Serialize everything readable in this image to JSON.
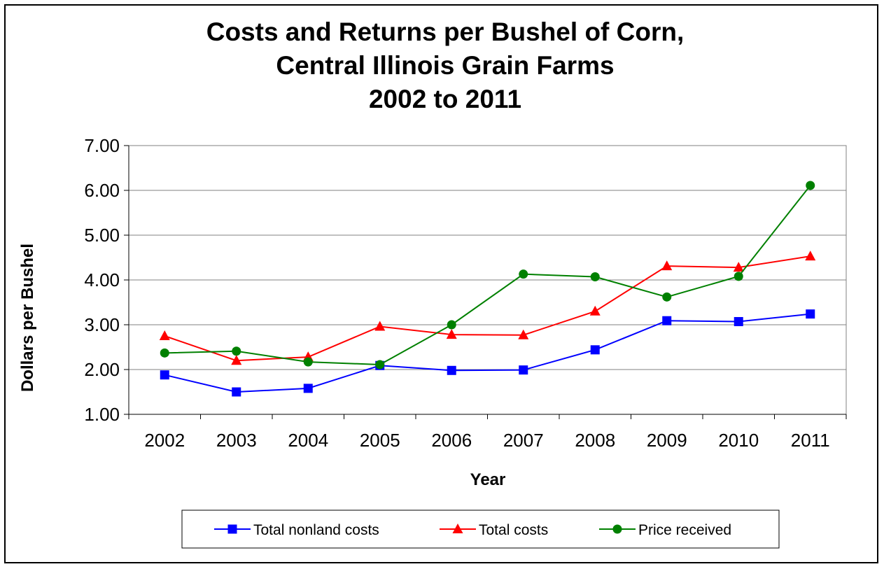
{
  "chart_data": {
    "type": "line",
    "title": [
      "Costs and Returns per Bushel of Corn,",
      "Central Illinois Grain Farms",
      "2002 to 2011"
    ],
    "xlabel": "Year",
    "ylabel": "Dollars per Bushel",
    "categories": [
      "2002",
      "2003",
      "2004",
      "2005",
      "2006",
      "2007",
      "2008",
      "2009",
      "2010",
      "2011"
    ],
    "ylim": [
      1.0,
      7.0
    ],
    "yticks": [
      "1.00",
      "2.00",
      "3.00",
      "4.00",
      "5.00",
      "6.00",
      "7.00"
    ],
    "grid": true,
    "legend_position": "bottom",
    "series": [
      {
        "name": "Total nonland costs",
        "color": "#0000ff",
        "marker": "square",
        "values": [
          1.88,
          1.5,
          1.58,
          2.09,
          1.98,
          1.99,
          2.44,
          3.09,
          3.07,
          3.24
        ]
      },
      {
        "name": "Total costs",
        "color": "#ff0000",
        "marker": "triangle",
        "values": [
          2.75,
          2.2,
          2.28,
          2.96,
          2.78,
          2.77,
          3.3,
          4.31,
          4.28,
          4.53
        ]
      },
      {
        "name": "Price received",
        "color": "#008000",
        "marker": "circle",
        "values": [
          2.37,
          2.41,
          2.17,
          2.11,
          3.0,
          4.13,
          4.07,
          3.62,
          4.08,
          6.11
        ]
      }
    ]
  }
}
